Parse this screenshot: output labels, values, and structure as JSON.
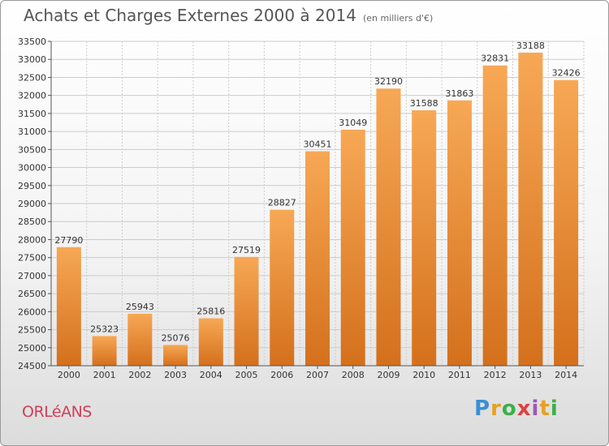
{
  "header": {
    "title": "Achats et Charges Externes 2000 à 2014",
    "subtitle": "(en milliers d'€)"
  },
  "footer": {
    "city": "ORLéANS",
    "logo": "Proxiti"
  },
  "colors": {
    "bar_light": "#f7a855",
    "bar_dark": "#d4701c",
    "grid": "#cccccc"
  },
  "chart_data": {
    "type": "bar",
    "categories": [
      "2000",
      "2001",
      "2002",
      "2003",
      "2004",
      "2005",
      "2006",
      "2007",
      "2008",
      "2009",
      "2010",
      "2011",
      "2012",
      "2013",
      "2014"
    ],
    "values": [
      27790,
      25323,
      25943,
      25076,
      25816,
      27519,
      28827,
      30451,
      31049,
      32190,
      31588,
      31863,
      32831,
      33188,
      32426
    ],
    "ylim": [
      24500,
      33500
    ],
    "yticks": [
      24500,
      25000,
      25500,
      26000,
      26500,
      27000,
      27500,
      28000,
      28500,
      29000,
      29500,
      30000,
      30500,
      31000,
      31500,
      32000,
      32500,
      33000,
      33500
    ],
    "grid": true,
    "data_labels": true
  }
}
